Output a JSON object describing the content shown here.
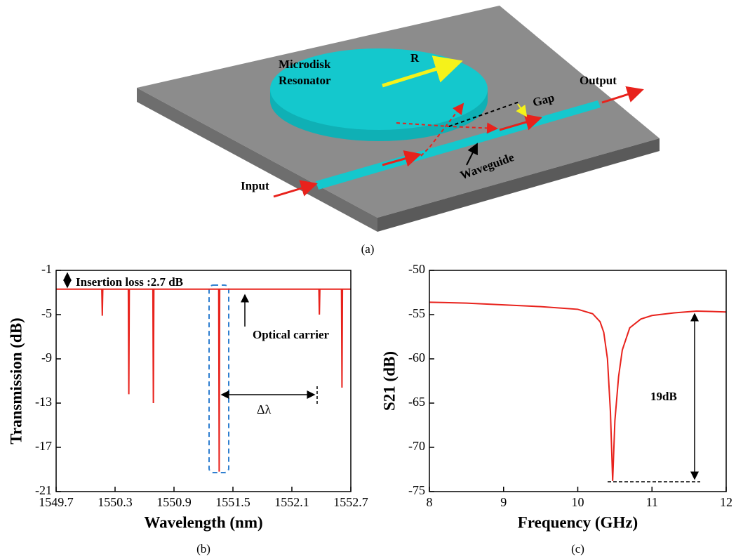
{
  "diagram": {
    "disk_label": [
      "Microdisk",
      "Resonator"
    ],
    "radius_label": "R",
    "output_label": "Output",
    "gap_label": "Gap",
    "waveguide_label": "Waveguide",
    "input_label": "Input",
    "caption": "(a)"
  },
  "chart_data": [
    {
      "type": "line",
      "caption": "(b)",
      "xlabel": "Wavelength (nm)",
      "ylabel": "Transmission (dB)",
      "xlim": [
        1549.7,
        1552.7
      ],
      "xticks": [
        1549.7,
        1550.3,
        1550.9,
        1551.5,
        1552.1,
        1552.7
      ],
      "ylim": [
        -21,
        -1
      ],
      "yticks": [
        -1,
        -5,
        -9,
        -13,
        -17,
        -21
      ],
      "annotations": [
        "Insertion loss :2.7 dB",
        "Optical carrier",
        "Δλ"
      ],
      "x": [
        1549.7,
        1550.165,
        1550.17,
        1550.175,
        1550.435,
        1550.44,
        1550.445,
        1550.685,
        1550.69,
        1550.695,
        1551.355,
        1551.36,
        1551.365,
        1552.375,
        1552.38,
        1552.385,
        1552.605,
        1552.61,
        1552.615,
        1552.7
      ],
      "series": [
        {
          "color": "#e8221c",
          "values": [
            -2.7,
            -2.7,
            -5.1,
            -2.7,
            -2.7,
            -12.2,
            -2.7,
            -2.7,
            -13,
            -2.7,
            -2.7,
            -19.2,
            -2.7,
            -2.7,
            -5,
            -2.7,
            -2.7,
            -11.6,
            -2.7,
            -2.7
          ]
        }
      ]
    },
    {
      "type": "line",
      "caption": "(c)",
      "xlabel": "Frequency (GHz)",
      "ylabel": "S21 (dB)",
      "xlim": [
        8,
        12
      ],
      "xticks": [
        8,
        9,
        10,
        11,
        12
      ],
      "ylim": [
        -75,
        -50
      ],
      "yticks": [
        -50,
        -55,
        -60,
        -65,
        -70,
        -75
      ],
      "annotations": [
        "19dB"
      ],
      "x": [
        8,
        8.5,
        9,
        9.5,
        10,
        10.2,
        10.3,
        10.35,
        10.4,
        10.44,
        10.47,
        10.5,
        10.55,
        10.6,
        10.7,
        10.85,
        11,
        11.3,
        11.6,
        12
      ],
      "series": [
        {
          "color": "#e8221c",
          "values": [
            -53.6,
            -53.7,
            -53.9,
            -54.1,
            -54.4,
            -54.9,
            -55.8,
            -57,
            -60,
            -66,
            -73.8,
            -67,
            -62,
            -59,
            -56.5,
            -55.5,
            -55.1,
            -54.8,
            -54.6,
            -54.7
          ]
        }
      ]
    }
  ]
}
